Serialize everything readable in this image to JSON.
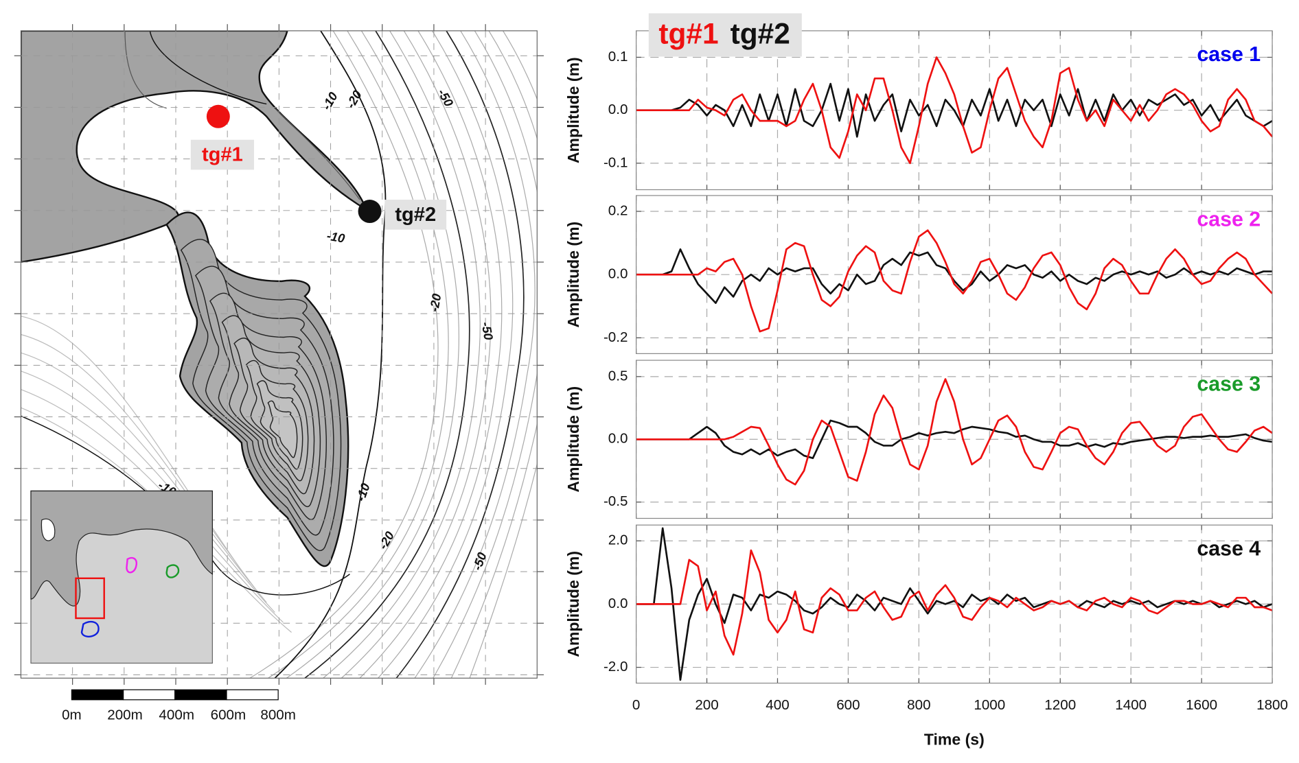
{
  "chart_data": [
    {
      "type": "line",
      "annotation": "case 1",
      "annotation_color": "#0000ee",
      "ylabel": "Amplitude (m)",
      "legend": "top-left",
      "grid": true,
      "x": [
        0,
        25,
        50,
        75,
        100,
        125,
        150,
        175,
        200,
        225,
        250,
        275,
        300,
        325,
        350,
        375,
        400,
        425,
        450,
        475,
        500,
        525,
        550,
        575,
        600,
        625,
        650,
        675,
        700,
        725,
        750,
        775,
        800,
        825,
        850,
        875,
        900,
        925,
        950,
        975,
        1000,
        1025,
        1050,
        1075,
        1100,
        1125,
        1150,
        1175,
        1200,
        1225,
        1250,
        1275,
        1300,
        1325,
        1350,
        1375,
        1400,
        1425,
        1450,
        1475,
        1500,
        1525,
        1550,
        1575,
        1600,
        1625,
        1650,
        1675,
        1700,
        1725,
        1750,
        1775,
        1800
      ],
      "xlim": [
        0,
        1800
      ],
      "xticks": [
        0,
        200,
        400,
        600,
        800,
        1000,
        1200,
        1400,
        1600,
        1800
      ],
      "ylim": [
        -0.15,
        0.15
      ],
      "yticks": [
        -0.1,
        {
          "value": 0,
          "label": "0.0"
        },
        0.1
      ],
      "series": [
        {
          "name": "tg#1",
          "color": "#ee1111",
          "values": [
            0,
            0,
            0,
            0,
            0,
            0,
            0,
            0.02,
            0.005,
            0,
            -0.01,
            0.02,
            0.03,
            0,
            -0.02,
            -0.02,
            -0.02,
            -0.03,
            -0.02,
            0.02,
            0.05,
            0,
            -0.07,
            -0.09,
            -0.04,
            0.03,
            0,
            0.06,
            0.06,
            0,
            -0.07,
            -0.1,
            -0.03,
            0.05,
            0.1,
            0.07,
            0.03,
            -0.03,
            -0.08,
            -0.07,
            0,
            0.06,
            0.08,
            0.03,
            -0.02,
            -0.05,
            -0.07,
            -0.02,
            0.07,
            0.08,
            0.02,
            -0.02,
            0,
            -0.03,
            0.02,
            0,
            -0.02,
            0.01,
            -0.02,
            0,
            0.03,
            0.04,
            0.03,
            0.01,
            -0.02,
            -0.04,
            -0.03,
            0.02,
            0.04,
            0.02,
            -0.02,
            -0.03,
            -0.05
          ]
        },
        {
          "name": "tg#2",
          "color": "#111111",
          "values": [
            0,
            0,
            0,
            0,
            0,
            0.005,
            0.02,
            0.01,
            -0.01,
            0.01,
            0,
            -0.03,
            0.01,
            -0.03,
            0.03,
            -0.02,
            0.03,
            -0.03,
            0.04,
            -0.02,
            -0.03,
            0,
            0.05,
            -0.02,
            0.04,
            -0.05,
            0.03,
            -0.02,
            0.01,
            0.03,
            -0.04,
            0.02,
            -0.01,
            0.01,
            -0.03,
            0.02,
            0,
            -0.03,
            0.02,
            -0.01,
            0.04,
            -0.02,
            0.02,
            -0.03,
            0.02,
            0,
            0.02,
            -0.03,
            0.03,
            -0.01,
            0.04,
            -0.02,
            0.02,
            -0.02,
            0.03,
            0,
            0.02,
            -0.01,
            0.02,
            0.01,
            0.02,
            0.03,
            0.01,
            0.02,
            -0.01,
            0.01,
            -0.02,
            0,
            0.02,
            -0.01,
            -0.02,
            -0.03,
            -0.02
          ]
        }
      ]
    },
    {
      "type": "line",
      "annotation": "case 2",
      "annotation_color": "#ee22ee",
      "ylabel": "Amplitude (m)",
      "grid": true,
      "x": [
        0,
        25,
        50,
        75,
        100,
        125,
        150,
        175,
        200,
        225,
        250,
        275,
        300,
        325,
        350,
        375,
        400,
        425,
        450,
        475,
        500,
        525,
        550,
        575,
        600,
        625,
        650,
        675,
        700,
        725,
        750,
        775,
        800,
        825,
        850,
        875,
        900,
        925,
        950,
        975,
        1000,
        1025,
        1050,
        1075,
        1100,
        1125,
        1150,
        1175,
        1200,
        1225,
        1250,
        1275,
        1300,
        1325,
        1350,
        1375,
        1400,
        1425,
        1450,
        1475,
        1500,
        1525,
        1550,
        1575,
        1600,
        1625,
        1650,
        1675,
        1700,
        1725,
        1750,
        1775,
        1800
      ],
      "xlim": [
        0,
        1800
      ],
      "xticks": [
        0,
        200,
        400,
        600,
        800,
        1000,
        1200,
        1400,
        1600,
        1800
      ],
      "ylim": [
        -0.25,
        0.25
      ],
      "yticks": [
        -0.2,
        {
          "value": 0,
          "label": "0.0"
        },
        0.2
      ],
      "series": [
        {
          "color": "#ee1111",
          "values": [
            0,
            0,
            0,
            0,
            0,
            0,
            0,
            0,
            0.02,
            0.01,
            0.04,
            0.05,
            0,
            -0.1,
            -0.18,
            -0.17,
            -0.05,
            0.08,
            0.1,
            0.09,
            0,
            -0.08,
            -0.1,
            -0.07,
            0.01,
            0.06,
            0.09,
            0.07,
            -0.02,
            -0.05,
            -0.06,
            0.04,
            0.12,
            0.14,
            0.1,
            0.04,
            -0.03,
            -0.06,
            -0.02,
            0.04,
            0.05,
            0,
            -0.06,
            -0.08,
            -0.04,
            0.02,
            0.06,
            0.07,
            0.03,
            -0.04,
            -0.09,
            -0.11,
            -0.06,
            0.02,
            0.05,
            0.03,
            -0.02,
            -0.06,
            -0.06,
            0,
            0.05,
            0.08,
            0.05,
            0,
            -0.03,
            -0.02,
            0.02,
            0.05,
            0.07,
            0.05,
            0,
            -0.03,
            -0.06
          ]
        },
        {
          "color": "#111111",
          "values": [
            0,
            0,
            0,
            0,
            0.01,
            0.08,
            0.02,
            -0.03,
            -0.06,
            -0.09,
            -0.04,
            -0.07,
            -0.02,
            0,
            -0.02,
            0.02,
            0,
            0.02,
            0.01,
            0.02,
            0.02,
            -0.03,
            -0.06,
            -0.03,
            -0.05,
            0,
            -0.03,
            -0.02,
            0.03,
            0.05,
            0.03,
            0.07,
            0.06,
            0.07,
            0.03,
            0.02,
            -0.02,
            -0.05,
            -0.03,
            0.01,
            -0.02,
            0,
            0.03,
            0.02,
            0.03,
            0,
            -0.01,
            0.01,
            -0.02,
            0,
            -0.02,
            -0.03,
            -0.01,
            -0.02,
            0,
            0.01,
            0,
            0.01,
            0,
            0.01,
            -0.01,
            0,
            0.02,
            0,
            0.01,
            0,
            0.01,
            0,
            0.02,
            0.01,
            0,
            0.01,
            0.01
          ]
        }
      ]
    },
    {
      "type": "line",
      "annotation": "case 3",
      "annotation_color": "#1a9b2a",
      "ylabel": "Amplitude (m)",
      "grid": true,
      "x": [
        0,
        25,
        50,
        75,
        100,
        125,
        150,
        175,
        200,
        225,
        250,
        275,
        300,
        325,
        350,
        375,
        400,
        425,
        450,
        475,
        500,
        525,
        550,
        575,
        600,
        625,
        650,
        675,
        700,
        725,
        750,
        775,
        800,
        825,
        850,
        875,
        900,
        925,
        950,
        975,
        1000,
        1025,
        1050,
        1075,
        1100,
        1125,
        1150,
        1175,
        1200,
        1225,
        1250,
        1275,
        1300,
        1325,
        1350,
        1375,
        1400,
        1425,
        1450,
        1475,
        1500,
        1525,
        1550,
        1575,
        1600,
        1625,
        1650,
        1675,
        1700,
        1725,
        1750,
        1775,
        1800
      ],
      "xlim": [
        0,
        1800
      ],
      "xticks": [
        0,
        200,
        400,
        600,
        800,
        1000,
        1200,
        1400,
        1600,
        1800
      ],
      "ylim": [
        -0.63,
        0.63
      ],
      "yticks": [
        -0.5,
        {
          "value": 0,
          "label": "0.0"
        },
        0.5
      ],
      "series": [
        {
          "color": "#ee1111",
          "values": [
            0,
            0,
            0,
            0,
            0,
            0,
            0,
            0,
            0,
            0,
            0,
            0.02,
            0.06,
            0.1,
            0.09,
            -0.05,
            -0.2,
            -0.32,
            -0.36,
            -0.25,
            0,
            0.15,
            0.1,
            -0.1,
            -0.3,
            -0.33,
            -0.1,
            0.2,
            0.35,
            0.25,
            0,
            -0.2,
            -0.24,
            -0.05,
            0.3,
            0.48,
            0.3,
            0,
            -0.2,
            -0.15,
            0,
            0.15,
            0.19,
            0.1,
            -0.1,
            -0.22,
            -0.24,
            -0.1,
            0.05,
            0.1,
            0.08,
            -0.05,
            -0.15,
            -0.2,
            -0.1,
            0.05,
            0.13,
            0.14,
            0.05,
            -0.05,
            -0.1,
            -0.05,
            0.1,
            0.18,
            0.2,
            0.1,
            0,
            -0.08,
            -0.1,
            -0.02,
            0.07,
            0.1,
            0.05
          ]
        },
        {
          "color": "#111111",
          "values": [
            0,
            0,
            0,
            0,
            0,
            0,
            0,
            0.05,
            0.1,
            0.05,
            -0.05,
            -0.1,
            -0.12,
            -0.08,
            -0.12,
            -0.08,
            -0.13,
            -0.1,
            -0.08,
            -0.13,
            -0.15,
            0,
            0.15,
            0.13,
            0.1,
            0.1,
            0.05,
            -0.02,
            -0.05,
            -0.05,
            0,
            0.02,
            0.05,
            0.03,
            0.05,
            0.06,
            0.05,
            0.08,
            0.1,
            0.09,
            0.08,
            0.06,
            0.05,
            0.02,
            0.03,
            0,
            -0.02,
            -0.02,
            -0.05,
            -0.05,
            -0.03,
            -0.06,
            -0.04,
            -0.06,
            -0.03,
            -0.04,
            -0.02,
            -0.01,
            0,
            0.01,
            0.02,
            0.02,
            0.01,
            0.02,
            0.02,
            0.03,
            0.02,
            0.02,
            0.03,
            0.04,
            0.01,
            -0.01,
            -0.02
          ]
        }
      ]
    },
    {
      "type": "line",
      "annotation": "case 4",
      "annotation_color": "#111111",
      "ylabel": "Amplitude (m)",
      "xlabel": "Time (s)",
      "show_xtick_labels": true,
      "grid": true,
      "x": [
        0,
        25,
        50,
        75,
        100,
        125,
        150,
        175,
        200,
        225,
        250,
        275,
        300,
        325,
        350,
        375,
        400,
        425,
        450,
        475,
        500,
        525,
        550,
        575,
        600,
        625,
        650,
        675,
        700,
        725,
        750,
        775,
        800,
        825,
        850,
        875,
        900,
        925,
        950,
        975,
        1000,
        1025,
        1050,
        1075,
        1100,
        1125,
        1150,
        1175,
        1200,
        1225,
        1250,
        1275,
        1300,
        1325,
        1350,
        1375,
        1400,
        1425,
        1450,
        1475,
        1500,
        1525,
        1550,
        1575,
        1600,
        1625,
        1650,
        1675,
        1700,
        1725,
        1750,
        1775,
        1800
      ],
      "xlim": [
        0,
        1800
      ],
      "xticks": [
        0,
        200,
        400,
        600,
        800,
        1000,
        1200,
        1400,
        1600,
        1800
      ],
      "ylim": [
        -2.5,
        2.5
      ],
      "yticks": [
        {
          "value": -2,
          "label": "-2.0"
        },
        {
          "value": 0,
          "label": "0.0"
        },
        {
          "value": 2,
          "label": "2.0"
        }
      ],
      "series": [
        {
          "color": "#ee1111",
          "values": [
            0,
            0,
            0,
            0,
            0,
            0,
            1.4,
            1.2,
            -0.2,
            0.4,
            -1,
            -1.6,
            -0.3,
            1.7,
            1,
            -0.5,
            -0.9,
            -0.5,
            0.4,
            -0.8,
            -0.9,
            0.2,
            0.5,
            0.3,
            -0.2,
            -0.2,
            0.2,
            0.4,
            -0.1,
            -0.5,
            -0.4,
            0.2,
            0.4,
            -0.2,
            0.3,
            0.6,
            0.2,
            -0.4,
            -0.5,
            -0.1,
            0.2,
            0.1,
            -0.1,
            0.2,
            0,
            -0.2,
            -0.1,
            0.1,
            0,
            0.1,
            -0.1,
            -0.2,
            0.1,
            0.2,
            0,
            -0.1,
            0.2,
            0.1,
            -0.2,
            -0.3,
            -0.1,
            0.1,
            0.1,
            0,
            0,
            0.1,
            0,
            -0.1,
            0.2,
            0.2,
            -0.1,
            -0.1,
            -0.2
          ]
        },
        {
          "color": "#111111",
          "values": [
            0,
            0,
            0,
            2.4,
            0.5,
            -2.4,
            -0.5,
            0.3,
            0.8,
            0,
            -0.6,
            0.3,
            0.2,
            -0.2,
            0.3,
            0.2,
            0.4,
            0.3,
            0.1,
            -0.2,
            -0.3,
            -0.1,
            0.2,
            0,
            -0.1,
            0.3,
            0.1,
            -0.2,
            0.2,
            0.1,
            0,
            0.5,
            0.1,
            -0.3,
            0.1,
            0,
            0.1,
            -0.1,
            0.3,
            0.1,
            0.2,
            0,
            0.3,
            0.1,
            0.2,
            -0.1,
            0,
            0.1,
            0,
            0.1,
            -0.1,
            0.1,
            0,
            -0.1,
            0.1,
            0,
            0.1,
            0,
            0.1,
            -0.1,
            0,
            0.1,
            0,
            0.1,
            0,
            0.1,
            -0.1,
            0,
            0.1,
            0,
            0.1,
            -0.1,
            0
          ]
        }
      ]
    }
  ],
  "map": {
    "gauges": [
      {
        "label": "tg#1",
        "color": "#ee1111"
      },
      {
        "label": "tg#2",
        "color": "#111111"
      }
    ],
    "contour_labels": [
      -10,
      -20,
      -50,
      -10,
      -20,
      -50,
      -10,
      -20,
      -50,
      -10
    ],
    "scale_labels": [
      "0m",
      "200m",
      "400m",
      "600m",
      "800m"
    ]
  }
}
